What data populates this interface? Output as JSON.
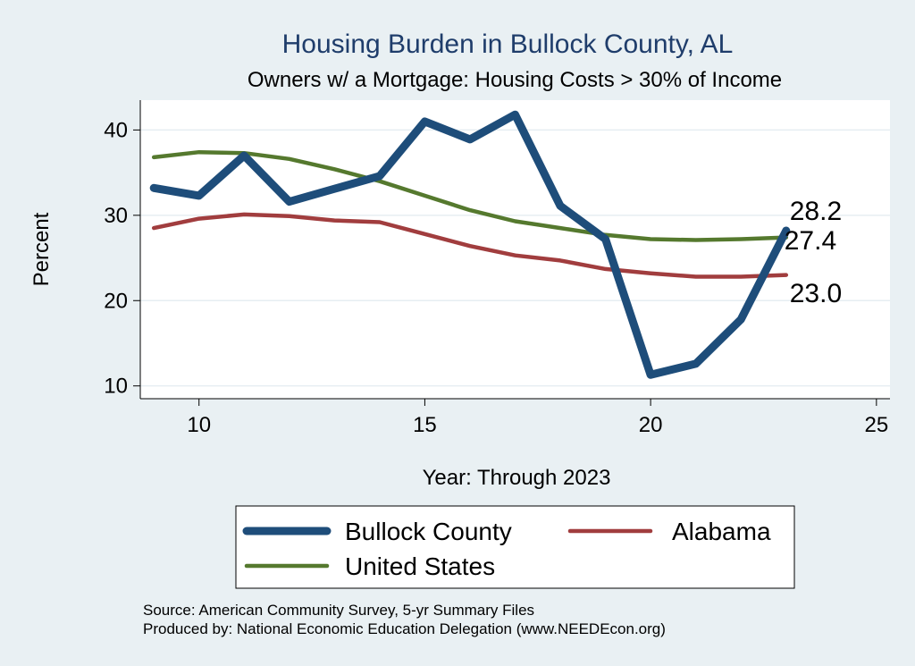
{
  "chart_data": {
    "type": "line",
    "title": "Housing Burden in Bullock County, AL",
    "subtitle": "Owners w/ a Mortgage: Housing Costs > 30% of Income",
    "xlabel": "Year: Through 2023",
    "ylabel": "Percent",
    "xlim": [
      8.7,
      25.3
    ],
    "ylim": [
      8.5,
      43.5
    ],
    "x_ticks": [
      "10",
      "15",
      "20",
      "25"
    ],
    "y_ticks": [
      "10",
      "20",
      "30",
      "40"
    ],
    "x": [
      9,
      10,
      11,
      12,
      13,
      14,
      15,
      16,
      17,
      18,
      19,
      20,
      21,
      22,
      23
    ],
    "series": [
      {
        "name": "Bullock County",
        "color": "#1e4d7a",
        "values": [
          33.2,
          32.3,
          37.0,
          31.6,
          33.1,
          34.6,
          41.0,
          38.9,
          41.8,
          31.1,
          27.2,
          11.3,
          12.6,
          17.8,
          28.2
        ],
        "end_label": "28.2"
      },
      {
        "name": "Alabama",
        "color": "#a13d3e",
        "values": [
          28.5,
          29.6,
          30.1,
          29.9,
          29.4,
          29.2,
          27.8,
          26.4,
          25.3,
          24.7,
          23.7,
          23.2,
          22.8,
          22.8,
          23.0
        ],
        "end_label": "23.0"
      },
      {
        "name": "United States",
        "color": "#55792e",
        "values": [
          36.8,
          37.4,
          37.3,
          36.6,
          35.4,
          34.0,
          32.3,
          30.6,
          29.3,
          28.5,
          27.7,
          27.2,
          27.1,
          27.2,
          27.4
        ],
        "end_label": "27.4"
      }
    ],
    "legend": {
      "position": "bottom",
      "entries": [
        "Bullock County",
        "Alabama",
        "United States"
      ]
    },
    "notes": [
      "Source: American Community Survey, 5-yr Summary Files",
      "Produced by: National Economic Education Delegation (www.NEEDEcon.org)"
    ]
  }
}
